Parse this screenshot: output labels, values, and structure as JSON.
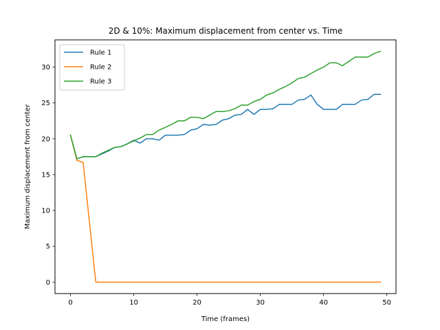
{
  "chart_data": {
    "type": "line",
    "title": "2D & 10%: Maximum displacement from center vs. Time",
    "xlabel": "Time (frames)",
    "ylabel": "Maximum displacement from center",
    "xlim": [
      -2.45,
      51.45
    ],
    "ylim": [
      -1.6,
      33.8
    ],
    "xticks": [
      0,
      10,
      20,
      30,
      40,
      50
    ],
    "yticks": [
      0,
      5,
      10,
      15,
      20,
      25,
      30
    ],
    "grid": false,
    "legend_position": "top-left",
    "x": [
      0,
      1,
      2,
      3,
      4,
      5,
      6,
      7,
      8,
      9,
      10,
      11,
      12,
      13,
      14,
      15,
      16,
      17,
      18,
      19,
      20,
      21,
      22,
      23,
      24,
      25,
      26,
      27,
      28,
      29,
      30,
      31,
      32,
      33,
      34,
      35,
      36,
      37,
      38,
      39,
      40,
      41,
      42,
      43,
      44,
      45,
      46,
      47,
      48,
      49
    ],
    "series": [
      {
        "name": "Rule 1",
        "color": "#1f77b4",
        "values": [
          20.5,
          17.2,
          17.5,
          17.5,
          17.5,
          17.9,
          18.3,
          18.8,
          18.9,
          19.3,
          19.8,
          19.4,
          20.0,
          20.0,
          19.8,
          20.5,
          20.5,
          20.5,
          20.6,
          21.2,
          21.4,
          22.0,
          21.9,
          22.0,
          22.6,
          22.8,
          23.3,
          23.4,
          24.1,
          23.4,
          24.1,
          24.1,
          24.2,
          24.8,
          24.8,
          24.8,
          25.4,
          25.5,
          26.1,
          24.8,
          24.1,
          24.1,
          24.1,
          24.8,
          24.8,
          24.8,
          25.4,
          25.5,
          26.2,
          26.2
        ]
      },
      {
        "name": "Rule 2",
        "color": "#ff7f0e",
        "values": [
          20.5,
          17.0,
          16.7,
          8.3,
          0,
          0,
          0,
          0,
          0,
          0,
          0,
          0,
          0,
          0,
          0,
          0,
          0,
          0,
          0,
          0,
          0,
          0,
          0,
          0,
          0,
          0,
          0,
          0,
          0,
          0,
          0,
          0,
          0,
          0,
          0,
          0,
          0,
          0,
          0,
          0,
          0,
          0,
          0,
          0,
          0,
          0,
          0,
          0,
          0,
          0
        ]
      },
      {
        "name": "Rule 3",
        "color": "#2ca02c",
        "values": [
          20.5,
          17.2,
          17.5,
          17.5,
          17.5,
          18.0,
          18.4,
          18.8,
          18.9,
          19.3,
          19.7,
          20.1,
          20.6,
          20.6,
          21.2,
          21.6,
          22.0,
          22.5,
          22.5,
          23.0,
          23.0,
          22.8,
          23.3,
          23.8,
          23.8,
          23.9,
          24.2,
          24.7,
          24.7,
          25.2,
          25.5,
          26.1,
          26.4,
          26.9,
          27.3,
          27.8,
          28.4,
          28.6,
          29.1,
          29.6,
          30.0,
          30.6,
          30.6,
          30.2,
          30.8,
          31.4,
          31.4,
          31.4,
          31.9,
          32.2
        ]
      }
    ]
  }
}
